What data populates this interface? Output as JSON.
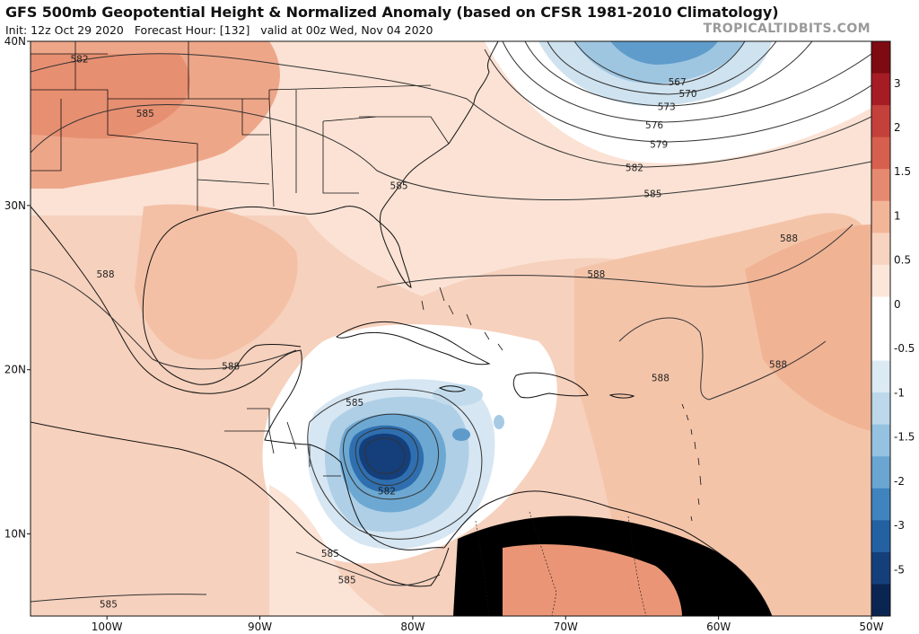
{
  "header": {
    "title": "GFS 500mb Geopotential Height & Normalized Anomaly (based on CFSR 1981-2010 Climatology)",
    "init": "Init: 12z Oct 29 2020",
    "forecast_hour": "Forecast Hour: [132]",
    "valid": "valid at 00z Wed, Nov 04 2020",
    "credit": "TROPICALTIDBITS.COM"
  },
  "map": {
    "lon_range": [
      -105,
      -50
    ],
    "lat_range": [
      5,
      40
    ],
    "lat_ticks": [
      {
        "value": 40,
        "label": "40N"
      },
      {
        "value": 30,
        "label": "30N"
      },
      {
        "value": 20,
        "label": "20N"
      },
      {
        "value": 10,
        "label": "10N"
      }
    ],
    "lon_ticks": [
      {
        "value": -100,
        "label": "100W"
      },
      {
        "value": -90,
        "label": "90W"
      },
      {
        "value": -80,
        "label": "80W"
      },
      {
        "value": -70,
        "label": "70W"
      },
      {
        "value": -60,
        "label": "60W"
      },
      {
        "value": -50,
        "label": "50W"
      }
    ],
    "colorbar_labels": [
      "3",
      "2",
      "1.5",
      "1",
      "0.5",
      "0",
      "-0.5",
      "-1",
      "-1.5",
      "-2",
      "-3",
      "-5"
    ],
    "colorbar_colors": [
      "#7e0a12",
      "#a61c24",
      "#c4403a",
      "#d6604d",
      "#e58a70",
      "#f3b598",
      "#f8d3bf",
      "#fce6da",
      "#ffffff",
      "#ffffff",
      "#dceaf3",
      "#bcd8ea",
      "#94c2e0",
      "#6aa6d1",
      "#3f84bf",
      "#2461a3",
      "#153f7a",
      "#0b2553"
    ],
    "shading": {
      "positive": "#f6d0bb",
      "strong_positive": "#ec9c7d",
      "weak_positive": "#fbe3d5",
      "negative": "#c2dbec",
      "strong_negative": "#2a64a8"
    },
    "contour_labels": [
      {
        "text": "582",
        "lon": -101.8,
        "lat": 38.9
      },
      {
        "text": "585",
        "lon": -97.5,
        "lat": 35.6
      },
      {
        "text": "567",
        "lon": -62.7,
        "lat": 37.5
      },
      {
        "text": "570",
        "lon": -62.0,
        "lat": 36.8
      },
      {
        "text": "573",
        "lon": -63.4,
        "lat": 36.0
      },
      {
        "text": "576",
        "lon": -64.2,
        "lat": 34.9
      },
      {
        "text": "579",
        "lon": -63.9,
        "lat": 33.7
      },
      {
        "text": "582",
        "lon": -65.5,
        "lat": 32.3
      },
      {
        "text": "585",
        "lon": -80.9,
        "lat": 31.2
      },
      {
        "text": "585",
        "lon": -64.3,
        "lat": 30.7
      },
      {
        "text": "588",
        "lon": -100.1,
        "lat": 25.8
      },
      {
        "text": "588",
        "lon": -91.9,
        "lat": 20.2
      },
      {
        "text": "588",
        "lon": -68.0,
        "lat": 25.8
      },
      {
        "text": "588",
        "lon": -55.4,
        "lat": 28.0
      },
      {
        "text": "588",
        "lon": -56.1,
        "lat": 20.3
      },
      {
        "text": "588",
        "lon": -63.8,
        "lat": 19.5
      },
      {
        "text": "585",
        "lon": -83.8,
        "lat": 18.0
      },
      {
        "text": "582",
        "lon": -81.7,
        "lat": 12.6
      },
      {
        "text": "585",
        "lon": -85.4,
        "lat": 8.8
      },
      {
        "text": "585",
        "lon": -84.3,
        "lat": 7.2
      },
      {
        "text": "585",
        "lon": -99.9,
        "lat": 5.7
      }
    ]
  }
}
